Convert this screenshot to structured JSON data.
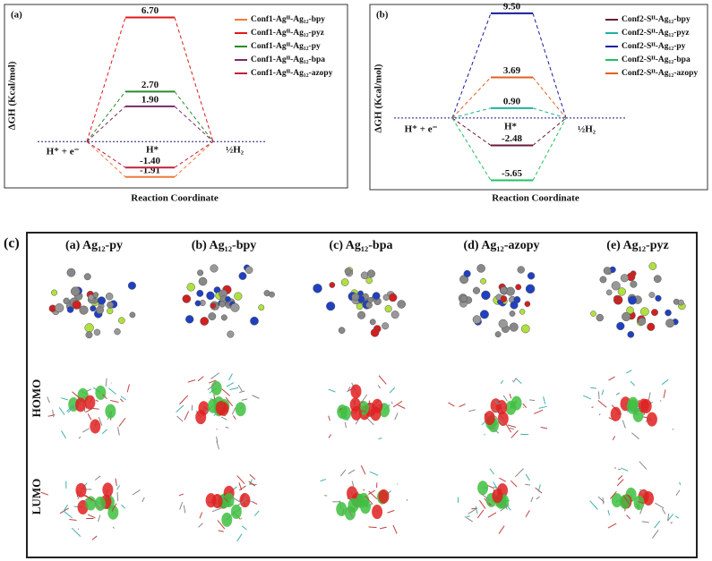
{
  "chart_data": [
    {
      "type": "energy-level",
      "panel_label": "(a)",
      "ylabel": "ΔGH (Kcal/mol)",
      "xlabel": "Reaction Coordinate",
      "start_label": "H⁺ + e⁻",
      "mid_label": "H*",
      "end_label": "½H₂",
      "ylim": [
        -2.5,
        7.4
      ],
      "series": [
        {
          "name": "Conf1-Agᴵᴵ-Ag₁₂-bpy",
          "color": "#f07a3c",
          "values": [
            -1.91
          ],
          "value_labels": [
            "-1.91"
          ]
        },
        {
          "name": "Conf1-Agᴵᴵ-Ag₁₂-pyz",
          "color": "#e01818",
          "values": [
            6.7
          ],
          "value_labels": [
            "6.70"
          ]
        },
        {
          "name": "Conf1-Agᴵᴵ-Ag₁₂-py",
          "color": "#2a8a2a",
          "values": [
            2.7
          ],
          "value_labels": [
            "2.70"
          ]
        },
        {
          "name": "Conf1-Agᴵᴵ-Ag₁₂-bpa",
          "color": "#7a2a6a",
          "values": [
            1.9
          ],
          "value_labels": [
            "1.90"
          ]
        },
        {
          "name": "Conf1-Agᴵᴵ-Ag₁₂-azopy",
          "color": "#c0203a",
          "values": [
            -1.4
          ],
          "value_labels": [
            "-1.40"
          ]
        }
      ]
    },
    {
      "type": "energy-level",
      "panel_label": "(b)",
      "ylabel": "ΔGH (Kcal/mol)",
      "xlabel": "Reaction Coordinate",
      "start_label": "H⁺ + e⁻",
      "mid_label": "H*",
      "end_label": "½H₂",
      "ylim": [
        -6.5,
        10.3
      ],
      "series": [
        {
          "name": "Conf2-Sᴵᴵ-Ag₁₂-bpy",
          "color": "#6a1a3a",
          "values": [
            -2.48
          ],
          "value_labels": [
            "-2.48"
          ]
        },
        {
          "name": "Conf2-Sᴵᴵ-Ag₁₂-pyz",
          "color": "#20b0a0",
          "values": [
            0.9
          ],
          "value_labels": [
            "0.90"
          ]
        },
        {
          "name": "Conf2-Sᴵᴵ-Ag₁₂-py",
          "color": "#1a1aa0",
          "values": [
            9.5
          ],
          "value_labels": [
            "9.50"
          ]
        },
        {
          "name": "Conf2-Sᴵᴵ-Ag₁₂-bpa",
          "color": "#20c060",
          "values": [
            -5.65
          ],
          "value_labels": [
            "-5.65"
          ]
        },
        {
          "name": "Conf2-Sᴵᴵ-Ag₁₂-azopy",
          "color": "#e06020",
          "values": [
            3.69
          ],
          "value_labels": [
            "3.69"
          ]
        }
      ]
    }
  ],
  "panel_c": {
    "label": "(c)",
    "columns": [
      "(a) Ag₁₂-py",
      "(b) Ag₁₂-bpy",
      "(c) Ag₁₂-bpa",
      "(d) Ag₁₂-azopy",
      "(e) Ag₁₂-pyz"
    ],
    "rows": [
      "HOMO",
      "LUMO"
    ]
  }
}
